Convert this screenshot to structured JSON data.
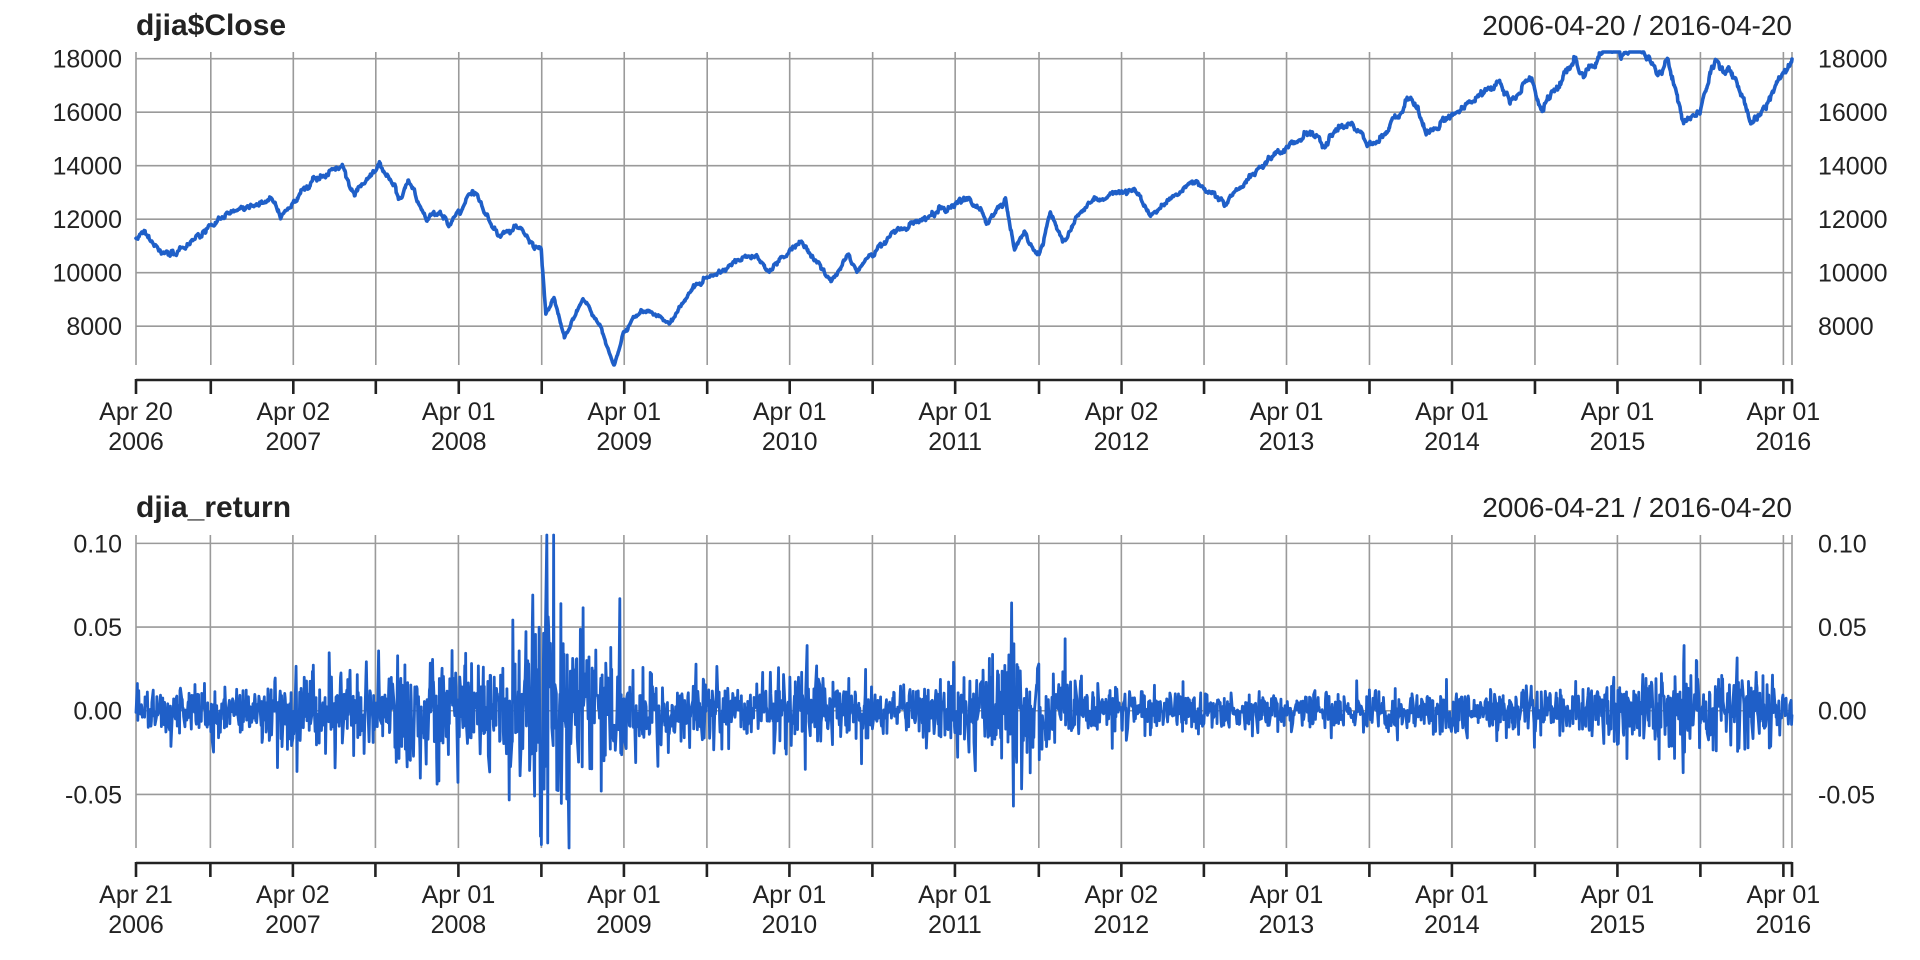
{
  "chart_data": [
    {
      "type": "line",
      "title": "djia$Close",
      "date_range": "2006-04-20 / 2016-04-20",
      "ylim": [
        6550,
        18250
      ],
      "y_ticks": [
        "18000",
        "16000",
        "14000",
        "12000",
        "10000",
        "8000"
      ],
      "y_tick_values": [
        18000,
        16000,
        14000,
        12000,
        10000,
        8000
      ],
      "xlim": [
        "2006-04-20",
        "2016-04-20"
      ],
      "x_tick_labels": [
        {
          "date": "2006-04-20",
          "top": "Apr 20",
          "bottom": "2006"
        },
        {
          "date": "2007-04-02",
          "top": "Apr 02",
          "bottom": "2007"
        },
        {
          "date": "2008-04-01",
          "top": "Apr 01",
          "bottom": "2008"
        },
        {
          "date": "2009-04-01",
          "top": "Apr 01",
          "bottom": "2009"
        },
        {
          "date": "2010-04-01",
          "top": "Apr 01",
          "bottom": "2010"
        },
        {
          "date": "2011-04-01",
          "top": "Apr 01",
          "bottom": "2011"
        },
        {
          "date": "2012-04-02",
          "top": "Apr 02",
          "bottom": "2012"
        },
        {
          "date": "2013-04-01",
          "top": "Apr 01",
          "bottom": "2013"
        },
        {
          "date": "2014-04-01",
          "top": "Apr 01",
          "bottom": "2014"
        },
        {
          "date": "2015-04-01",
          "top": "Apr 01",
          "bottom": "2015"
        },
        {
          "date": "2016-04-01",
          "top": "Apr 01",
          "bottom": "2016"
        }
      ],
      "minor_tick_dates": [
        "2006-10-02",
        "2007-10-01",
        "2008-10-01",
        "2009-10-01",
        "2010-10-01",
        "2011-10-03",
        "2012-10-01",
        "2013-10-01",
        "2014-10-01",
        "2015-10-01"
      ],
      "grid": true,
      "series": [
        {
          "color": "#1f5fc8",
          "points": [
            [
              "2006-04-20",
              11300
            ],
            [
              "2006-05-10",
              11600
            ],
            [
              "2006-06-13",
              10750
            ],
            [
              "2006-07-20",
              10750
            ],
            [
              "2006-09-01",
              11400
            ],
            [
              "2006-10-20",
              12000
            ],
            [
              "2006-12-20",
              12400
            ],
            [
              "2007-02-20",
              12750
            ],
            [
              "2007-03-05",
              12050
            ],
            [
              "2007-04-20",
              12900
            ],
            [
              "2007-06-01",
              13600
            ],
            [
              "2007-07-19",
              14000
            ],
            [
              "2007-08-15",
              12850
            ],
            [
              "2007-09-20",
              13700
            ],
            [
              "2007-10-09",
              14164
            ],
            [
              "2007-11-26",
              12750
            ],
            [
              "2007-12-12",
              13500
            ],
            [
              "2008-01-22",
              11950
            ],
            [
              "2008-02-20",
              12400
            ],
            [
              "2008-03-10",
              11750
            ],
            [
              "2008-05-02",
              13050
            ],
            [
              "2008-06-27",
              11350
            ],
            [
              "2008-08-11",
              11750
            ],
            [
              "2008-09-15",
              10900
            ],
            [
              "2008-09-30",
              10850
            ],
            [
              "2008-10-10",
              8450
            ],
            [
              "2008-10-28",
              9100
            ],
            [
              "2008-11-20",
              7550
            ],
            [
              "2009-01-02",
              9050
            ],
            [
              "2009-02-10",
              7900
            ],
            [
              "2009-03-09",
              6550
            ],
            [
              "2009-04-01",
              7800
            ],
            [
              "2009-05-08",
              8600
            ],
            [
              "2009-07-10",
              8150
            ],
            [
              "2009-09-01",
              9400
            ],
            [
              "2009-11-20",
              10300
            ],
            [
              "2010-01-19",
              10700
            ],
            [
              "2010-02-08",
              10050
            ],
            [
              "2010-04-26",
              11200
            ],
            [
              "2010-07-02",
              9700
            ],
            [
              "2010-08-09",
              10700
            ],
            [
              "2010-08-26",
              10050
            ],
            [
              "2010-11-05",
              11450
            ],
            [
              "2011-01-20",
              12000
            ],
            [
              "2011-04-29",
              12800
            ],
            [
              "2011-06-15",
              11900
            ],
            [
              "2011-07-21",
              12700
            ],
            [
              "2011-08-10",
              10750
            ],
            [
              "2011-09-01",
              11500
            ],
            [
              "2011-10-03",
              10650
            ],
            [
              "2011-10-28",
              12200
            ],
            [
              "2011-11-25",
              11250
            ],
            [
              "2012-01-15",
              12500
            ],
            [
              "2012-05-01",
              13250
            ],
            [
              "2012-06-04",
              12100
            ],
            [
              "2012-09-15",
              13550
            ],
            [
              "2012-11-15",
              12550
            ],
            [
              "2013-01-15",
              13650
            ],
            [
              "2013-05-28",
              15400
            ],
            [
              "2013-06-24",
              14700
            ],
            [
              "2013-08-01",
              15650
            ],
            [
              "2013-10-09",
              14750
            ],
            [
              "2013-12-31",
              16550
            ],
            [
              "2014-02-03",
              15350
            ],
            [
              "2014-07-17",
              17100
            ],
            [
              "2014-08-07",
              16350
            ],
            [
              "2014-09-19",
              17300
            ],
            [
              "2014-10-15",
              16100
            ],
            [
              "2014-12-26",
              18050
            ],
            [
              "2015-01-15",
              17350
            ],
            [
              "2015-03-02",
              18250
            ],
            [
              "2015-05-19",
              18300
            ],
            [
              "2015-07-08",
              17500
            ],
            [
              "2015-07-20",
              18100
            ],
            [
              "2015-08-25",
              15650
            ],
            [
              "2015-09-29",
              16000
            ],
            [
              "2015-11-03",
              17900
            ],
            [
              "2015-12-18",
              17150
            ],
            [
              "2016-01-20",
              15650
            ],
            [
              "2016-02-11",
              15750
            ],
            [
              "2016-04-20",
              18050
            ]
          ]
        }
      ]
    },
    {
      "type": "line",
      "title": "djia_return",
      "date_range": "2006-04-21 / 2016-04-20",
      "ylim": [
        -0.082,
        0.105
      ],
      "y_ticks": [
        "0.10",
        "0.05",
        "0.00",
        "-0.05"
      ],
      "y_tick_values": [
        0.1,
        0.05,
        0.0,
        -0.05
      ],
      "xlim": [
        "2006-04-21",
        "2016-04-20"
      ],
      "x_tick_labels": [
        {
          "date": "2006-04-21",
          "top": "Apr 21",
          "bottom": "2006"
        },
        {
          "date": "2007-04-02",
          "top": "Apr 02",
          "bottom": "2007"
        },
        {
          "date": "2008-04-01",
          "top": "Apr 01",
          "bottom": "2008"
        },
        {
          "date": "2009-04-01",
          "top": "Apr 01",
          "bottom": "2009"
        },
        {
          "date": "2010-04-01",
          "top": "Apr 01",
          "bottom": "2010"
        },
        {
          "date": "2011-04-01",
          "top": "Apr 01",
          "bottom": "2011"
        },
        {
          "date": "2012-04-02",
          "top": "Apr 02",
          "bottom": "2012"
        },
        {
          "date": "2013-04-01",
          "top": "Apr 01",
          "bottom": "2013"
        },
        {
          "date": "2014-04-01",
          "top": "Apr 01",
          "bottom": "2014"
        },
        {
          "date": "2015-04-01",
          "top": "Apr 01",
          "bottom": "2015"
        },
        {
          "date": "2016-04-01",
          "top": "Apr 01",
          "bottom": "2016"
        }
      ],
      "minor_tick_dates": [
        "2006-10-02",
        "2007-10-01",
        "2008-10-01",
        "2009-10-01",
        "2010-10-01",
        "2011-10-03",
        "2012-10-01",
        "2013-10-01",
        "2014-10-01",
        "2015-10-01"
      ],
      "grid": true,
      "series": [
        {
          "color": "#1f5fc8",
          "volatility_profile": [
            [
              "2006-04-21",
              0.009
            ],
            [
              "2006-07-01",
              0.008
            ],
            [
              "2007-01-01",
              0.006
            ],
            [
              "2007-03-01",
              0.011
            ],
            [
              "2007-07-15",
              0.013
            ],
            [
              "2008-01-15",
              0.017
            ],
            [
              "2008-07-01",
              0.015
            ],
            [
              "2008-09-15",
              0.035
            ],
            [
              "2008-12-01",
              0.025
            ],
            [
              "2009-04-01",
              0.015
            ],
            [
              "2009-07-01",
              0.01
            ],
            [
              "2010-01-01",
              0.008
            ],
            [
              "2010-05-10",
              0.013
            ],
            [
              "2010-07-01",
              0.009
            ],
            [
              "2011-01-01",
              0.007
            ],
            [
              "2011-08-08",
              0.022
            ],
            [
              "2011-12-01",
              0.01
            ],
            [
              "2012-04-01",
              0.007
            ],
            [
              "2013-01-01",
              0.006
            ],
            [
              "2014-01-01",
              0.006
            ],
            [
              "2015-01-01",
              0.008
            ],
            [
              "2015-08-24",
              0.014
            ],
            [
              "2016-01-15",
              0.012
            ],
            [
              "2016-04-20",
              0.007
            ]
          ],
          "extremes": [
            [
              "2007-02-27",
              -0.034
            ],
            [
              "2007-10-31",
              0.019
            ],
            [
              "2008-03-18",
              0.036
            ],
            [
              "2008-09-29",
              -0.075
            ],
            [
              "2008-10-01",
              -0.08
            ],
            [
              "2008-10-13",
              0.105
            ],
            [
              "2008-10-15",
              -0.079
            ],
            [
              "2008-10-28",
              0.109
            ],
            [
              "2008-11-13",
              0.064
            ],
            [
              "2008-12-01",
              -0.082
            ],
            [
              "2009-03-23",
              0.067
            ],
            [
              "2009-02-10",
              -0.048
            ],
            [
              "2010-05-10",
              0.039
            ],
            [
              "2010-05-06",
              -0.035
            ],
            [
              "2011-08-08",
              -0.057
            ],
            [
              "2011-08-09",
              0.04
            ],
            [
              "2011-11-30",
              0.043
            ],
            [
              "2015-08-24",
              -0.037
            ],
            [
              "2015-08-26",
              0.039
            ],
            [
              "2016-01-07",
              -0.023
            ]
          ]
        }
      ]
    }
  ]
}
